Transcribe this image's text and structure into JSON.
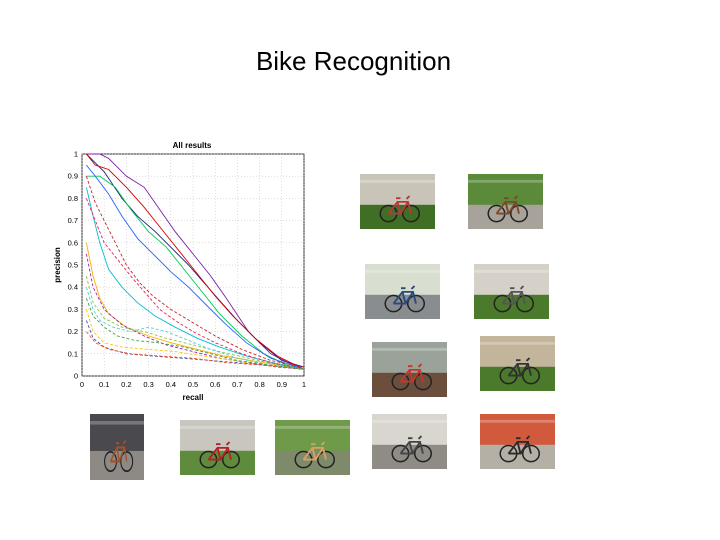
{
  "slide": {
    "title": "Bike Recognition"
  },
  "chart_data": {
    "type": "line",
    "title": "All results",
    "xlabel": "recall",
    "ylabel": "precision",
    "xlim": [
      0,
      1
    ],
    "ylim": [
      0,
      1
    ],
    "grid": true,
    "x_ticks": [
      "0",
      "0.1",
      "0.2",
      "0.3",
      "0.4",
      "0.5",
      "0.6",
      "0.7",
      "0.8",
      "0.9",
      "1"
    ],
    "y_ticks": [
      "0",
      "0.1",
      "0.2",
      "0.3",
      "0.4",
      "0.5",
      "0.6",
      "0.7",
      "0.8",
      "0.9",
      "1"
    ],
    "series": [
      {
        "color": "#7b1fa2",
        "dash": "",
        "points": [
          [
            0.02,
            1
          ],
          [
            0.08,
            1
          ],
          [
            0.12,
            0.98
          ],
          [
            0.2,
            0.9
          ],
          [
            0.28,
            0.85
          ],
          [
            0.35,
            0.75
          ],
          [
            0.42,
            0.65
          ],
          [
            0.5,
            0.55
          ],
          [
            0.58,
            0.45
          ],
          [
            0.65,
            0.35
          ],
          [
            0.75,
            0.2
          ],
          [
            0.85,
            0.1
          ],
          [
            0.95,
            0.05
          ],
          [
            1,
            0.04
          ]
        ]
      },
      {
        "color": "#1a237e",
        "dash": "",
        "points": [
          [
            0.02,
            1
          ],
          [
            0.05,
            0.97
          ],
          [
            0.1,
            0.92
          ],
          [
            0.18,
            0.8
          ],
          [
            0.25,
            0.72
          ],
          [
            0.33,
            0.65
          ],
          [
            0.4,
            0.58
          ],
          [
            0.48,
            0.5
          ],
          [
            0.55,
            0.42
          ],
          [
            0.62,
            0.34
          ],
          [
            0.7,
            0.25
          ],
          [
            0.8,
            0.15
          ],
          [
            0.9,
            0.07
          ],
          [
            1,
            0.04
          ]
        ]
      },
      {
        "color": "#d50000",
        "dash": "",
        "points": [
          [
            0.02,
            1
          ],
          [
            0.06,
            0.95
          ],
          [
            0.12,
            0.93
          ],
          [
            0.2,
            0.85
          ],
          [
            0.28,
            0.76
          ],
          [
            0.36,
            0.66
          ],
          [
            0.44,
            0.56
          ],
          [
            0.52,
            0.46
          ],
          [
            0.6,
            0.36
          ],
          [
            0.68,
            0.27
          ],
          [
            0.78,
            0.17
          ],
          [
            0.88,
            0.09
          ],
          [
            1,
            0.03
          ]
        ]
      },
      {
        "color": "#00c853",
        "dash": "",
        "points": [
          [
            0.02,
            0.9
          ],
          [
            0.08,
            0.9
          ],
          [
            0.15,
            0.85
          ],
          [
            0.22,
            0.75
          ],
          [
            0.3,
            0.65
          ],
          [
            0.38,
            0.58
          ],
          [
            0.46,
            0.48
          ],
          [
            0.54,
            0.38
          ],
          [
            0.62,
            0.28
          ],
          [
            0.72,
            0.18
          ],
          [
            0.82,
            0.1
          ],
          [
            0.92,
            0.05
          ],
          [
            1,
            0.03
          ]
        ]
      },
      {
        "color": "#2962ff",
        "dash": "",
        "points": [
          [
            0.02,
            0.95
          ],
          [
            0.06,
            0.9
          ],
          [
            0.12,
            0.82
          ],
          [
            0.18,
            0.72
          ],
          [
            0.25,
            0.62
          ],
          [
            0.32,
            0.55
          ],
          [
            0.4,
            0.47
          ],
          [
            0.48,
            0.4
          ],
          [
            0.56,
            0.32
          ],
          [
            0.64,
            0.24
          ],
          [
            0.74,
            0.15
          ],
          [
            0.85,
            0.08
          ],
          [
            1,
            0.03
          ]
        ]
      },
      {
        "color": "#00bcd4",
        "dash": "",
        "points": [
          [
            0.02,
            0.85
          ],
          [
            0.05,
            0.72
          ],
          [
            0.08,
            0.6
          ],
          [
            0.12,
            0.48
          ],
          [
            0.18,
            0.4
          ],
          [
            0.25,
            0.33
          ],
          [
            0.33,
            0.27
          ],
          [
            0.42,
            0.22
          ],
          [
            0.52,
            0.17
          ],
          [
            0.62,
            0.13
          ],
          [
            0.74,
            0.09
          ],
          [
            0.86,
            0.06
          ],
          [
            1,
            0.03
          ]
        ]
      },
      {
        "color": "#ffab00",
        "dash": "",
        "points": [
          [
            0.02,
            0.6
          ],
          [
            0.05,
            0.45
          ],
          [
            0.08,
            0.35
          ],
          [
            0.12,
            0.28
          ],
          [
            0.2,
            0.22
          ],
          [
            0.3,
            0.18
          ],
          [
            0.4,
            0.15
          ],
          [
            0.52,
            0.12
          ],
          [
            0.64,
            0.09
          ],
          [
            0.76,
            0.07
          ],
          [
            0.88,
            0.05
          ],
          [
            1,
            0.03
          ]
        ]
      },
      {
        "color": "#e91e63",
        "dash": "3,2",
        "points": [
          [
            0.02,
            0.8
          ],
          [
            0.06,
            0.7
          ],
          [
            0.1,
            0.6
          ],
          [
            0.14,
            0.55
          ],
          [
            0.18,
            0.5
          ],
          [
            0.22,
            0.45
          ],
          [
            0.28,
            0.38
          ],
          [
            0.35,
            0.3
          ],
          [
            0.42,
            0.25
          ],
          [
            0.5,
            0.2
          ],
          [
            0.6,
            0.15
          ],
          [
            0.72,
            0.1
          ],
          [
            0.85,
            0.06
          ],
          [
            1,
            0.03
          ]
        ]
      },
      {
        "color": "#c62828",
        "dash": "3,2",
        "points": [
          [
            0.02,
            0.9
          ],
          [
            0.06,
            0.78
          ],
          [
            0.1,
            0.7
          ],
          [
            0.15,
            0.6
          ],
          [
            0.2,
            0.5
          ],
          [
            0.26,
            0.42
          ],
          [
            0.32,
            0.36
          ],
          [
            0.4,
            0.3
          ],
          [
            0.5,
            0.24
          ],
          [
            0.6,
            0.18
          ],
          [
            0.72,
            0.12
          ],
          [
            0.85,
            0.07
          ],
          [
            1,
            0.04
          ]
        ]
      },
      {
        "color": "#9c27b0",
        "dash": "3,2",
        "points": [
          [
            0.02,
            0.55
          ],
          [
            0.05,
            0.4
          ],
          [
            0.1,
            0.3
          ],
          [
            0.18,
            0.23
          ],
          [
            0.28,
            0.18
          ],
          [
            0.38,
            0.14
          ],
          [
            0.5,
            0.11
          ],
          [
            0.62,
            0.08
          ],
          [
            0.75,
            0.06
          ],
          [
            0.88,
            0.04
          ],
          [
            1,
            0.03
          ]
        ]
      },
      {
        "color": "#8bc34a",
        "dash": "3,2",
        "points": [
          [
            0.02,
            0.45
          ],
          [
            0.05,
            0.33
          ],
          [
            0.1,
            0.26
          ],
          [
            0.18,
            0.22
          ],
          [
            0.28,
            0.2
          ],
          [
            0.38,
            0.17
          ],
          [
            0.5,
            0.14
          ],
          [
            0.62,
            0.11
          ],
          [
            0.75,
            0.08
          ],
          [
            0.88,
            0.05
          ],
          [
            1,
            0.03
          ]
        ]
      },
      {
        "color": "#4dd0e1",
        "dash": "3,2",
        "points": [
          [
            0.02,
            0.4
          ],
          [
            0.05,
            0.3
          ],
          [
            0.08,
            0.25
          ],
          [
            0.14,
            0.22
          ],
          [
            0.22,
            0.2
          ],
          [
            0.3,
            0.22
          ],
          [
            0.38,
            0.2
          ],
          [
            0.48,
            0.16
          ],
          [
            0.58,
            0.12
          ],
          [
            0.7,
            0.08
          ],
          [
            0.84,
            0.05
          ],
          [
            1,
            0.03
          ]
        ]
      },
      {
        "color": "#ffc107",
        "dash": "3,2",
        "points": [
          [
            0.02,
            0.3
          ],
          [
            0.05,
            0.2
          ],
          [
            0.1,
            0.15
          ],
          [
            0.18,
            0.13
          ],
          [
            0.3,
            0.12
          ],
          [
            0.42,
            0.11
          ],
          [
            0.55,
            0.09
          ],
          [
            0.68,
            0.07
          ],
          [
            0.8,
            0.05
          ],
          [
            0.92,
            0.04
          ],
          [
            1,
            0.03
          ]
        ]
      },
      {
        "color": "#3f51b5",
        "dash": "3,2",
        "points": [
          [
            0.02,
            0.25
          ],
          [
            0.05,
            0.17
          ],
          [
            0.1,
            0.13
          ],
          [
            0.2,
            0.1
          ],
          [
            0.32,
            0.09
          ],
          [
            0.45,
            0.08
          ],
          [
            0.58,
            0.07
          ],
          [
            0.7,
            0.06
          ],
          [
            0.82,
            0.05
          ],
          [
            1,
            0.03
          ]
        ]
      },
      {
        "color": "#ff5722",
        "dash": "3,2",
        "points": [
          [
            0.02,
            0.2
          ],
          [
            0.06,
            0.15
          ],
          [
            0.12,
            0.12
          ],
          [
            0.22,
            0.1
          ],
          [
            0.35,
            0.09
          ],
          [
            0.5,
            0.08
          ],
          [
            0.65,
            0.06
          ],
          [
            0.8,
            0.05
          ],
          [
            1,
            0.03
          ]
        ]
      },
      {
        "color": "#43a047",
        "dash": "3,2",
        "points": [
          [
            0.02,
            0.35
          ],
          [
            0.05,
            0.27
          ],
          [
            0.1,
            0.22
          ],
          [
            0.16,
            0.18
          ],
          [
            0.24,
            0.16
          ],
          [
            0.34,
            0.15
          ],
          [
            0.46,
            0.13
          ],
          [
            0.58,
            0.1
          ],
          [
            0.7,
            0.07
          ],
          [
            0.84,
            0.05
          ],
          [
            1,
            0.03
          ]
        ]
      }
    ]
  },
  "photos": [
    {
      "name": "photo-1",
      "sky": "#c9c4b8",
      "ground": "#3f6e24",
      "frame": "#b33b3b"
    },
    {
      "name": "photo-2",
      "sky": "#5a8a3a",
      "ground": "#a8a39a",
      "frame": "#7a4a2a"
    },
    {
      "name": "photo-3",
      "sky": "#d8dfd0",
      "ground": "#8a8d90",
      "frame": "#2a4a7a"
    },
    {
      "name": "photo-4",
      "sky": "#d5d1c8",
      "ground": "#4c7a2c",
      "frame": "#555555"
    },
    {
      "name": "photo-5",
      "sky": "#9aa29a",
      "ground": "#6b4e3c",
      "frame": "#c0392b"
    },
    {
      "name": "photo-6",
      "sky": "#c2b59b",
      "ground": "#4a7a2a",
      "frame": "#333333"
    },
    {
      "name": "photo-7",
      "sky": "#4a4a4e",
      "ground": "#8d8a86",
      "frame": "#a0522d"
    },
    {
      "name": "photo-8",
      "sky": "#c9c6c0",
      "ground": "#5e8c3c",
      "frame": "#b22222"
    },
    {
      "name": "photo-9",
      "sky": "#6f9a4a",
      "ground": "#7e8a6a",
      "frame": "#d9a066"
    },
    {
      "name": "photo-10",
      "sky": "#d8d6cf",
      "ground": "#8f8c86",
      "frame": "#444444"
    },
    {
      "name": "photo-11",
      "sky": "#d25a3c",
      "ground": "#b5b0a6",
      "frame": "#2b2b2b"
    }
  ]
}
